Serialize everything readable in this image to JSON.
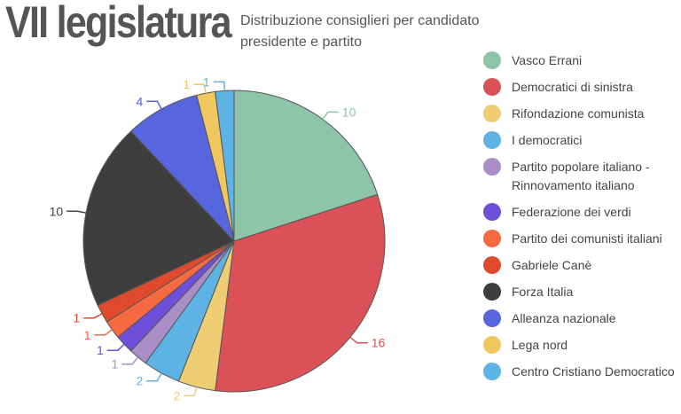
{
  "header": {
    "title": "VII legislatura",
    "subtitle": "Distribuzione consiglieri per candidato presidente e partito"
  },
  "chart_data": {
    "type": "pie",
    "title": "VII legislatura",
    "subtitle": "Distribuzione consiglieri per candidato presidente e partito",
    "legend_position": "right",
    "slices": [
      {
        "label": "Vasco Errani",
        "value": 10,
        "color": "#8cc5a8"
      },
      {
        "label": "Democratici di sinistra",
        "value": 16,
        "color": "#db5158"
      },
      {
        "label": "Rifondazione comunista",
        "value": 2,
        "color": "#efce73"
      },
      {
        "label": "I democratici",
        "value": 2,
        "color": "#5db3e4"
      },
      {
        "label": "Partito popolare italiano - Rinnovamento italiano",
        "value": 1,
        "color": "#aa8fc7"
      },
      {
        "label": "Federazione dei verdi",
        "value": 1,
        "color": "#6d4fd9"
      },
      {
        "label": "Partito dei comunisti italiani",
        "value": 1,
        "color": "#f56a40"
      },
      {
        "label": "Gabriele Canè",
        "value": 1,
        "color": "#e04a2c"
      },
      {
        "label": "Forza Italia",
        "value": 10,
        "color": "#3e3e3e"
      },
      {
        "label": "Alleanza nazionale",
        "value": 4,
        "color": "#5765df"
      },
      {
        "label": "Lega nord",
        "value": 1,
        "color": "#f0c65e"
      },
      {
        "label": "Centro Cristiano Democratico",
        "value": 1,
        "color": "#5db3e4"
      }
    ]
  }
}
